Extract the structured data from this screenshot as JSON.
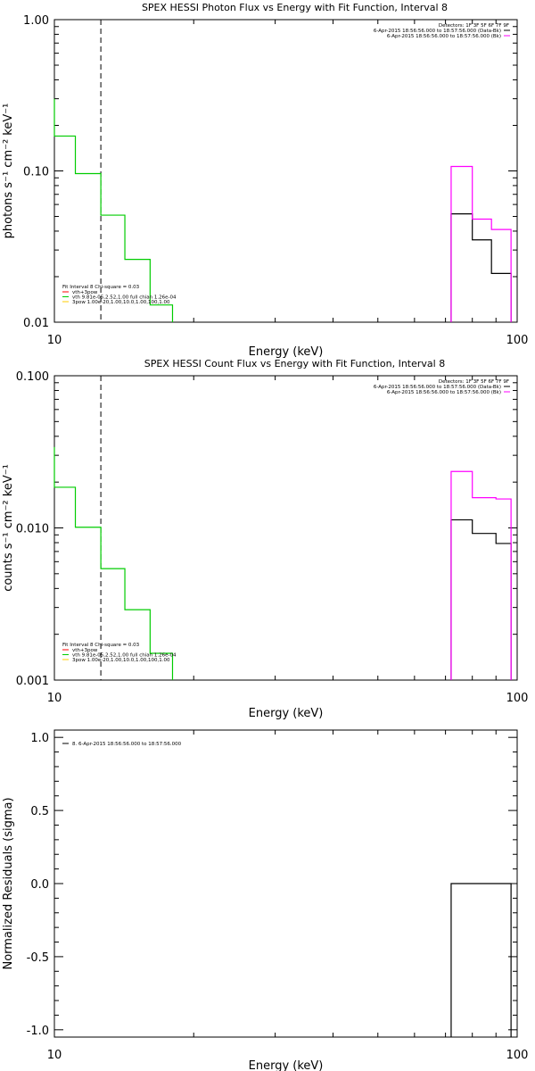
{
  "colors": {
    "background": "#ffffff",
    "axes": "#000000",
    "data": "#000000",
    "background_model": "#ff00ff",
    "fit_total": "#00cc00",
    "model_vth": "#ff0000",
    "model_3pow": "#ffcc00"
  },
  "chart_data": [
    {
      "id": "photon",
      "type": "line",
      "title": "SPEX HESSI Photon Flux vs Energy with Fit Function, Interval 8",
      "xlabel": "Energy (keV)",
      "ylabel": "photons s⁻¹ cm⁻² keV⁻¹",
      "xscale": "log",
      "yscale": "log",
      "xlim": [
        10,
        100
      ],
      "ylim": [
        0.01,
        1.0
      ],
      "xticks": [
        {
          "v": 10,
          "label": "10"
        },
        {
          "v": 100,
          "label": "100"
        }
      ],
      "yticks": [
        {
          "v": 0.01,
          "label": "0.01"
        },
        {
          "v": 0.1,
          "label": "0.10"
        },
        {
          "v": 1.0,
          "label": "1.00"
        }
      ],
      "vline_energy": 12.6,
      "legend_right": {
        "title": "Detectors: 1F 3F 5F 6F 7F 9F",
        "entries": [
          {
            "label": "6-Apr-2015 18:56:56.000 to 18:57:56.000 (Data-Bk)",
            "color": "#000000"
          },
          {
            "label": "6-Apr-2015 18:56:56.000 to 18:57:56.000 (Bk)",
            "color": "#ff00ff"
          }
        ]
      },
      "legend_left": {
        "title": "Fit Interval 8   Chi-square = 0.03",
        "entries": [
          {
            "label": "vth+3pow",
            "color": "#ff0000"
          },
          {
            "label": "vth 9.81e-05,2.52,1.00   full chian 1.26e-04",
            "color": "#00cc00"
          },
          {
            "label": "3pow 1.00e-20,1.00,10.0,1.00,100,1.00",
            "color": "#ffcc00"
          }
        ]
      },
      "series": [
        {
          "color": "#00cc00",
          "edges": [
            10,
            11.1,
            12.6,
            14.2,
            16.1,
            18.0
          ],
          "values": [
            0.17,
            0.096,
            0.051,
            0.026,
            0.013
          ],
          "start_value": 0.3
        },
        {
          "color": "#000000",
          "edges": [
            72,
            80,
            88,
            97
          ],
          "values": [
            0.052,
            0.035,
            0.021
          ]
        },
        {
          "color": "#ff00ff",
          "edges": [
            72,
            80,
            88,
            97
          ],
          "values": [
            0.107,
            0.048,
            0.041
          ]
        }
      ]
    },
    {
      "id": "count",
      "type": "line",
      "title": "SPEX HESSI Count Flux vs Energy with Fit Function, Interval 8",
      "xlabel": "Energy (keV)",
      "ylabel": "counts s⁻¹ cm⁻² keV⁻¹",
      "xscale": "log",
      "yscale": "log",
      "xlim": [
        10,
        100
      ],
      "ylim": [
        0.001,
        0.1
      ],
      "xticks": [
        {
          "v": 10,
          "label": "10"
        },
        {
          "v": 100,
          "label": "100"
        }
      ],
      "yticks": [
        {
          "v": 0.001,
          "label": "0.001"
        },
        {
          "v": 0.01,
          "label": "0.010"
        },
        {
          "v": 0.1,
          "label": "0.100"
        }
      ],
      "vline_energy": 12.6,
      "legend_right": {
        "title": "Detectors: 1F 3F 5F 6F 7F 9F",
        "entries": [
          {
            "label": "6-Apr-2015 18:56:56.000 to 18:57:56.000 (Data-Bk)",
            "color": "#000000"
          },
          {
            "label": "6-Apr-2015 18:56:56.000 to 18:57:56.000 (Bk)",
            "color": "#ff00ff"
          }
        ]
      },
      "legend_left": {
        "title": "Fit Interval 8   Chi-square = 0.03",
        "entries": [
          {
            "label": "vth+3pow",
            "color": "#ff0000"
          },
          {
            "label": "vth 9.81e-05,2.52,1.00   full chian 1.26e-04",
            "color": "#00cc00"
          },
          {
            "label": "3pow 1.00e-20,1.00,10.0,1.00,100,1.00",
            "color": "#ffcc00"
          }
        ]
      },
      "series": [
        {
          "color": "#00cc00",
          "edges": [
            10,
            11.1,
            12.6,
            14.2,
            16.1,
            18.0
          ],
          "values": [
            0.0185,
            0.0101,
            0.0054,
            0.0029,
            0.0015
          ],
          "start_value": 0.034
        },
        {
          "color": "#000000",
          "edges": [
            72,
            80,
            90,
            97
          ],
          "values": [
            0.0113,
            0.0092,
            0.0079
          ]
        },
        {
          "color": "#ff00ff",
          "edges": [
            72,
            80,
            90,
            97
          ],
          "values": [
            0.0235,
            0.0158,
            0.0155
          ]
        }
      ]
    },
    {
      "id": "residuals",
      "type": "line",
      "title": "",
      "xlabel": "Energy (keV)",
      "ylabel": "Normalized Residuals (sigma)",
      "xscale": "log",
      "yscale": "linear",
      "xlim": [
        10,
        100
      ],
      "ylim": [
        -1.05,
        1.05
      ],
      "xticks": [
        {
          "v": 10,
          "label": "10"
        },
        {
          "v": 100,
          "label": "100"
        }
      ],
      "yticks": [
        {
          "v": -1.0,
          "label": "-1.0"
        },
        {
          "v": -0.5,
          "label": "-0.5"
        },
        {
          "v": 0.0,
          "label": "0.0"
        },
        {
          "v": 0.5,
          "label": "0.5"
        },
        {
          "v": 1.0,
          "label": "1.0"
        }
      ],
      "legend_left": {
        "title": "",
        "entries": [
          {
            "label": "8.  6-Apr-2015 18:56:56.000 to 18:57:56.000",
            "color": "#000000"
          }
        ]
      },
      "series": [
        {
          "color": "#000000",
          "edges": [
            72,
            97
          ],
          "values": [
            0.0
          ],
          "drop_to_bottom": true
        }
      ]
    }
  ]
}
